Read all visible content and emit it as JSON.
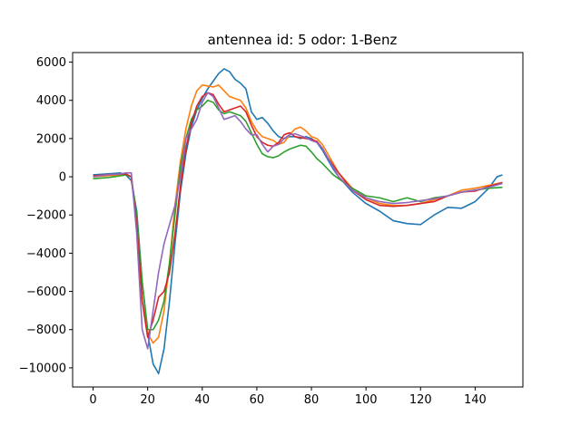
{
  "chart_data": {
    "type": "line",
    "title": "antennea id: 5    odor: 1-Benz",
    "xlabel": "",
    "ylabel": "",
    "xlim": [
      -7.5,
      157.5
    ],
    "ylim": [
      -11000,
      6500
    ],
    "xticks": [
      0,
      20,
      40,
      60,
      80,
      100,
      120,
      140
    ],
    "yticks": [
      -10000,
      -8000,
      -6000,
      -4000,
      -2000,
      0,
      2000,
      4000,
      6000
    ],
    "grid": false,
    "legend": "none",
    "series": [
      {
        "color": "#1f77b4",
        "x": [
          0,
          5,
          10,
          12,
          14,
          16,
          18,
          20,
          22,
          24,
          26,
          28,
          30,
          32,
          34,
          36,
          38,
          40,
          42,
          44,
          46,
          48,
          50,
          52,
          54,
          56,
          58,
          60,
          62,
          64,
          66,
          68,
          70,
          72,
          74,
          76,
          78,
          80,
          82,
          84,
          86,
          88,
          90,
          95,
          100,
          105,
          110,
          115,
          120,
          125,
          130,
          135,
          140,
          145,
          148,
          150
        ],
        "y": [
          100,
          150,
          200,
          100,
          -200,
          -1800,
          -5500,
          -8200,
          -9800,
          -10300,
          -9000,
          -6500,
          -3500,
          -800,
          1200,
          2600,
          3500,
          4100,
          4600,
          5000,
          5400,
          5650,
          5500,
          5100,
          4900,
          4600,
          3400,
          3000,
          3100,
          2800,
          2400,
          2100,
          2000,
          2100,
          2100,
          2000,
          2100,
          2000,
          1800,
          1400,
          900,
          400,
          0,
          -800,
          -1400,
          -1800,
          -2300,
          -2450,
          -2500,
          -2000,
          -1600,
          -1650,
          -1300,
          -600,
          0,
          100
        ]
      },
      {
        "color": "#ff7f0e",
        "x": [
          0,
          5,
          10,
          12,
          14,
          16,
          18,
          20,
          22,
          24,
          26,
          28,
          30,
          32,
          34,
          36,
          38,
          40,
          42,
          44,
          46,
          48,
          50,
          52,
          54,
          56,
          58,
          60,
          62,
          64,
          66,
          68,
          70,
          72,
          74,
          76,
          78,
          80,
          82,
          84,
          86,
          88,
          90,
          95,
          100,
          105,
          110,
          115,
          120,
          125,
          130,
          135,
          140,
          145,
          150
        ],
        "y": [
          0,
          50,
          100,
          100,
          0,
          -2500,
          -6500,
          -8200,
          -8700,
          -8400,
          -7000,
          -4500,
          -1500,
          800,
          2500,
          3700,
          4500,
          4800,
          4750,
          4700,
          4800,
          4500,
          4200,
          4100,
          4000,
          3600,
          2900,
          2400,
          2100,
          2000,
          1900,
          1700,
          1800,
          2200,
          2500,
          2600,
          2400,
          2100,
          2000,
          1700,
          1200,
          700,
          200,
          -600,
          -1100,
          -1400,
          -1500,
          -1500,
          -1400,
          -1200,
          -1000,
          -700,
          -600,
          -450,
          -300
        ]
      },
      {
        "color": "#2ca02c",
        "x": [
          0,
          5,
          10,
          12,
          14,
          16,
          18,
          20,
          22,
          24,
          26,
          28,
          30,
          32,
          34,
          36,
          38,
          40,
          42,
          44,
          46,
          48,
          50,
          52,
          54,
          56,
          58,
          60,
          62,
          64,
          66,
          68,
          70,
          72,
          74,
          76,
          78,
          80,
          82,
          84,
          86,
          88,
          90,
          95,
          100,
          105,
          110,
          115,
          120,
          125,
          130,
          135,
          140,
          145,
          150
        ],
        "y": [
          -100,
          -50,
          50,
          100,
          0,
          -2000,
          -5500,
          -8000,
          -8000,
          -7500,
          -6500,
          -4500,
          -2000,
          500,
          2000,
          3000,
          3500,
          3700,
          4000,
          3900,
          3500,
          3300,
          3400,
          3300,
          3200,
          2900,
          2300,
          1700,
          1200,
          1050,
          1000,
          1100,
          1300,
          1450,
          1550,
          1650,
          1600,
          1300,
          950,
          700,
          400,
          100,
          -100,
          -600,
          -1000,
          -1100,
          -1300,
          -1100,
          -1300,
          -1100,
          -1000,
          -800,
          -700,
          -600,
          -550
        ]
      },
      {
        "color": "#d62728",
        "x": [
          0,
          5,
          10,
          12,
          14,
          16,
          18,
          20,
          22,
          24,
          26,
          28,
          30,
          32,
          34,
          36,
          38,
          40,
          42,
          44,
          46,
          48,
          50,
          52,
          54,
          56,
          58,
          60,
          62,
          64,
          66,
          68,
          70,
          72,
          74,
          76,
          78,
          80,
          82,
          84,
          86,
          88,
          90,
          95,
          100,
          105,
          110,
          115,
          120,
          125,
          130,
          135,
          140,
          145,
          150
        ],
        "y": [
          50,
          100,
          150,
          150,
          0,
          -2500,
          -6500,
          -8400,
          -7500,
          -6300,
          -6000,
          -5000,
          -3000,
          -500,
          1500,
          2800,
          3700,
          4200,
          4400,
          4300,
          3800,
          3400,
          3500,
          3600,
          3700,
          3400,
          2700,
          2100,
          1800,
          1650,
          1600,
          1800,
          2200,
          2300,
          2100,
          2050,
          2000,
          1950,
          1850,
          1500,
          1000,
          600,
          200,
          -700,
          -1200,
          -1500,
          -1550,
          -1500,
          -1400,
          -1300,
          -1000,
          -800,
          -750,
          -500,
          -300
        ]
      },
      {
        "color": "#9467bd",
        "x": [
          0,
          5,
          10,
          12,
          14,
          16,
          18,
          20,
          22,
          24,
          26,
          28,
          30,
          32,
          34,
          36,
          38,
          40,
          42,
          44,
          46,
          48,
          50,
          52,
          54,
          56,
          58,
          60,
          62,
          64,
          66,
          68,
          70,
          72,
          74,
          76,
          78,
          80,
          82,
          84,
          86,
          88,
          90,
          95,
          100,
          105,
          110,
          115,
          120,
          125,
          130,
          135,
          140,
          145,
          150
        ],
        "y": [
          0,
          100,
          150,
          200,
          200,
          -3000,
          -8000,
          -9000,
          -7000,
          -5000,
          -3500,
          -2500,
          -1500,
          0,
          2000,
          2500,
          3000,
          3900,
          4400,
          4200,
          3600,
          3000,
          3100,
          3200,
          2900,
          2500,
          2200,
          2200,
          1700,
          1300,
          1600,
          1700,
          2000,
          2200,
          2250,
          2150,
          2050,
          1900,
          1800,
          1500,
          1000,
          500,
          0,
          -700,
          -1100,
          -1300,
          -1400,
          -1350,
          -1250,
          -1150,
          -1000,
          -800,
          -700,
          -550,
          -350
        ]
      }
    ]
  }
}
